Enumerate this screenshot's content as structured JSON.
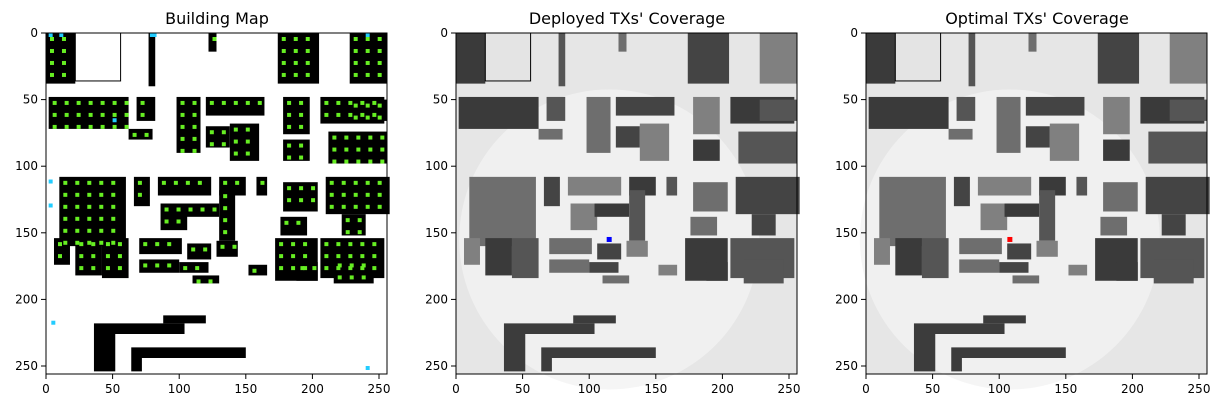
{
  "chart_data": [
    {
      "type": "heatmap",
      "title": "Building Map",
      "xlim": [
        0,
        256
      ],
      "ylim": [
        256,
        0
      ],
      "xticks": [
        0,
        50,
        100,
        150,
        200,
        250
      ],
      "yticks": [
        0,
        50,
        100,
        150,
        200,
        250
      ],
      "grid": false,
      "background": "#ffffff",
      "content": "binary building footprints with candidate transmitter sites",
      "marker_colors": {
        "rooftop_site": "#66ee22",
        "edge_site": "#22ccff"
      }
    },
    {
      "type": "heatmap",
      "title": "Deployed TXs' Coverage",
      "xlim": [
        0,
        256
      ],
      "ylim": [
        256,
        0
      ],
      "xticks": [
        0,
        50,
        100,
        150,
        200,
        250
      ],
      "yticks": [
        0,
        50,
        100,
        150,
        200,
        250
      ],
      "grid": false,
      "colormap": "grayscale",
      "transmitter": {
        "x": 115,
        "y": 155,
        "color": "#0000ff"
      }
    },
    {
      "type": "heatmap",
      "title": "Optimal TXs' Coverage",
      "xlim": [
        0,
        256
      ],
      "ylim": [
        256,
        0
      ],
      "xticks": [
        0,
        50,
        100,
        150,
        200,
        250
      ],
      "yticks": [
        0,
        50,
        100,
        150,
        200,
        250
      ],
      "grid": false,
      "colormap": "grayscale",
      "transmitter": {
        "x": 108,
        "y": 155,
        "color": "#ff0000"
      }
    }
  ],
  "buildings": [
    [
      0,
      0,
      22,
      38
    ],
    [
      77,
      0,
      5,
      40
    ],
    [
      122,
      0,
      6,
      14
    ],
    [
      174,
      0,
      31,
      38
    ],
    [
      228,
      0,
      28,
      38
    ],
    [
      2,
      48,
      60,
      24
    ],
    [
      68,
      48,
      14,
      18
    ],
    [
      98,
      48,
      18,
      42
    ],
    [
      120,
      48,
      44,
      14
    ],
    [
      178,
      48,
      20,
      28
    ],
    [
      206,
      48,
      48,
      20
    ],
    [
      228,
      50,
      28,
      16
    ],
    [
      62,
      72,
      18,
      8
    ],
    [
      120,
      70,
      18,
      16
    ],
    [
      138,
      68,
      22,
      28
    ],
    [
      178,
      80,
      20,
      16
    ],
    [
      212,
      74,
      44,
      24
    ],
    [
      10,
      108,
      50,
      52
    ],
    [
      66,
      108,
      12,
      22
    ],
    [
      84,
      108,
      40,
      14
    ],
    [
      130,
      108,
      20,
      14
    ],
    [
      158,
      108,
      8,
      14
    ],
    [
      178,
      112,
      26,
      22
    ],
    [
      210,
      108,
      48,
      28
    ],
    [
      86,
      128,
      20,
      20
    ],
    [
      104,
      128,
      26,
      10
    ],
    [
      130,
      118,
      12,
      38
    ],
    [
      176,
      138,
      20,
      14
    ],
    [
      222,
      136,
      18,
      16
    ],
    [
      6,
      154,
      12,
      20
    ],
    [
      22,
      154,
      20,
      28
    ],
    [
      42,
      154,
      20,
      30
    ],
    [
      70,
      154,
      32,
      12
    ],
    [
      106,
      158,
      18,
      12
    ],
    [
      128,
      156,
      16,
      12
    ],
    [
      172,
      154,
      32,
      32
    ],
    [
      206,
      154,
      48,
      30
    ],
    [
      70,
      170,
      30,
      10
    ],
    [
      100,
      172,
      22,
      8
    ],
    [
      152,
      174,
      14,
      8
    ],
    [
      188,
      172,
      16,
      14
    ],
    [
      216,
      170,
      30,
      18
    ],
    [
      110,
      182,
      20,
      6
    ]
  ],
  "bottom_structure": [
    {
      "points": [
        [
          36,
          218
        ],
        [
          104,
          218
        ],
        [
          104,
          226
        ],
        [
          52,
          226
        ],
        [
          52,
          254
        ],
        [
          36,
          254
        ]
      ]
    },
    {
      "points": [
        [
          64,
          236
        ],
        [
          150,
          236
        ],
        [
          150,
          244
        ],
        [
          72,
          244
        ],
        [
          72,
          254
        ],
        [
          64,
          254
        ]
      ]
    },
    {
      "points": [
        [
          88,
          212
        ],
        [
          120,
          212
        ],
        [
          120,
          218
        ],
        [
          88,
          218
        ]
      ]
    }
  ]
}
